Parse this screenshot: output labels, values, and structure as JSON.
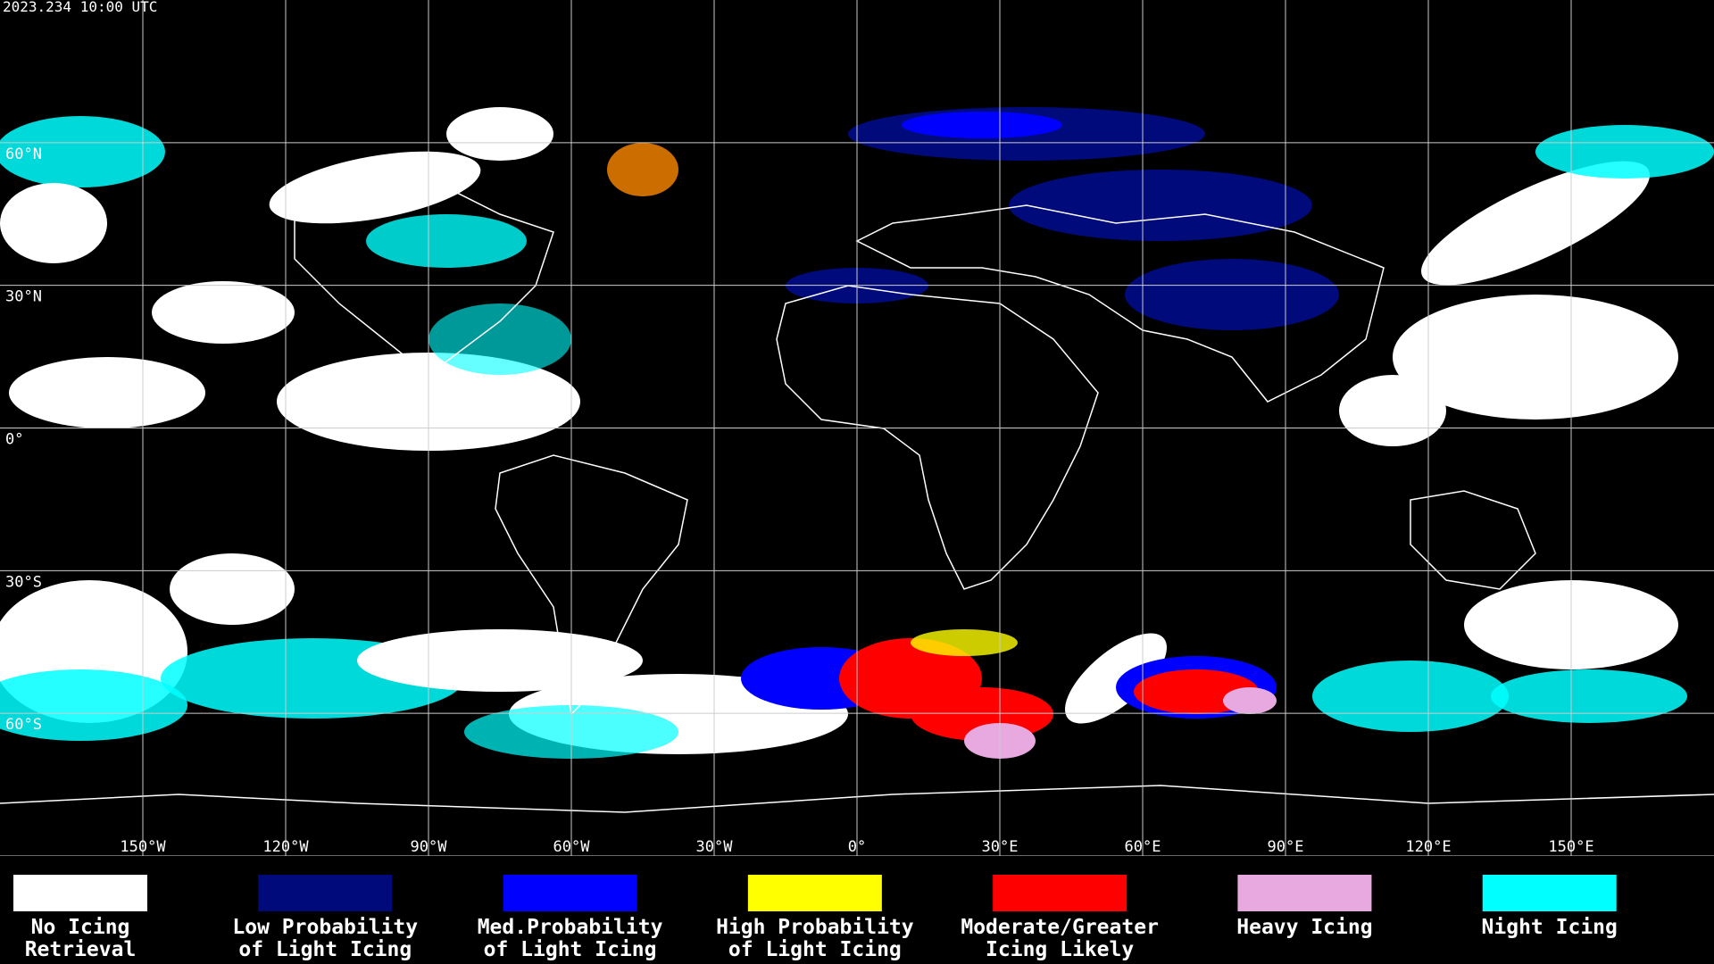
{
  "header": {
    "timestamp": "2023.234 10:00 UTC"
  },
  "map": {
    "longitude_labels": [
      "150°W",
      "120°W",
      "90°W",
      "60°W",
      "30°W",
      "0°",
      "30°E",
      "60°E",
      "90°E",
      "120°E",
      "150°E"
    ],
    "latitude_labels": [
      "60°N",
      "30°N",
      "0°",
      "30°S",
      "60°S"
    ]
  },
  "legend": [
    {
      "label": [
        "No Icing",
        "Retrieval"
      ],
      "color": "#ffffff"
    },
    {
      "label": [
        "Low Probability",
        "of Light Icing"
      ],
      "color": "#000a7a"
    },
    {
      "label": [
        "Med.Probability",
        "of Light Icing"
      ],
      "color": "#0000ff"
    },
    {
      "label": [
        "High Probability",
        "of Light Icing"
      ],
      "color": "#ffff00"
    },
    {
      "label": [
        "Moderate/Greater",
        "Icing Likely"
      ],
      "color": "#ff0000"
    },
    {
      "label": [
        "Heavy Icing",
        ""
      ],
      "color": "#e8a8e0"
    },
    {
      "label": [
        "Night Icing",
        ""
      ],
      "color": "#00ffff"
    }
  ]
}
